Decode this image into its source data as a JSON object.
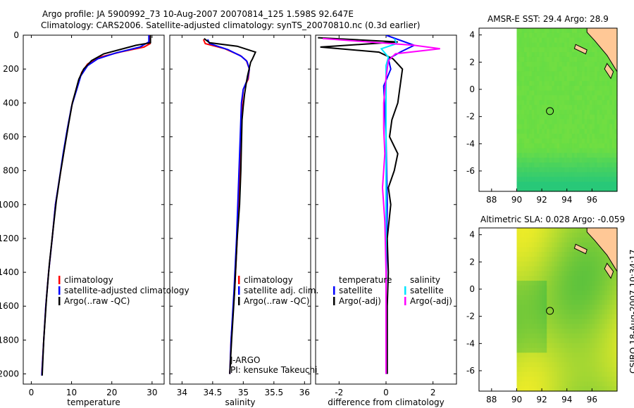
{
  "header": {
    "line1": "Argo profile: JA 5900992_73 10-Aug-2007 20070814_125 1.598S 92.647E",
    "line2": "Climatology: CARS2006. Satellite-adjusted climatology: synTS_20070810.nc (0.3d earlier)"
  },
  "side_stamp": "CSIRO 18-Aug-2007 10:34:17",
  "colors": {
    "clim": "#ff0000",
    "sat": "#0000ff",
    "argo": "#000000",
    "sal_sat": "#00e5ff",
    "sal_argo": "#ff00ff"
  },
  "chart_data": [
    {
      "id": "temperature",
      "type": "line",
      "xlabel": "temperature",
      "xlim": [
        -2,
        33
      ],
      "ylim": [
        0,
        2060
      ],
      "xticks": [
        0,
        10,
        20,
        30
      ],
      "yticks": [
        0,
        200,
        400,
        600,
        800,
        1000,
        1200,
        1400,
        1600,
        1800,
        2000
      ],
      "legend": [
        "climatology",
        "satellite-adjusted climatology",
        "Argo(..raw -QC)"
      ],
      "series": [
        {
          "name": "climatology",
          "color": "clim",
          "points": [
            [
              29.5,
              0
            ],
            [
              29.5,
              50
            ],
            [
              28,
              70
            ],
            [
              22,
              100
            ],
            [
              17,
              130
            ],
            [
              14,
              170
            ],
            [
              12.5,
              220
            ],
            [
              11.5,
              300
            ],
            [
              10.2,
              400
            ],
            [
              9,
              550
            ],
            [
              8,
              700
            ],
            [
              7,
              850
            ],
            [
              6,
              1000
            ],
            [
              5.2,
              1200
            ],
            [
              4.3,
              1400
            ],
            [
              3.6,
              1600
            ],
            [
              3.1,
              1800
            ],
            [
              2.6,
              2000
            ]
          ]
        },
        {
          "name": "satellite-adjusted climatology",
          "color": "sat",
          "points": [
            [
              29.2,
              0
            ],
            [
              29.2,
              40
            ],
            [
              27,
              70
            ],
            [
              21,
              105
            ],
            [
              16.5,
              140
            ],
            [
              14,
              180
            ],
            [
              12.3,
              240
            ],
            [
              11.3,
              320
            ],
            [
              10,
              420
            ],
            [
              8.9,
              560
            ],
            [
              7.9,
              700
            ],
            [
              6.9,
              860
            ],
            [
              6,
              1000
            ],
            [
              5.2,
              1200
            ],
            [
              4.3,
              1400
            ],
            [
              3.6,
              1600
            ],
            [
              3.1,
              1800
            ],
            [
              2.6,
              2010
            ]
          ]
        },
        {
          "name": "Argo(..raw -QC)",
          "color": "argo",
          "points": [
            [
              29.6,
              0
            ],
            [
              29.6,
              45
            ],
            [
              26,
              60
            ],
            [
              22,
              85
            ],
            [
              18,
              110
            ],
            [
              15,
              150
            ],
            [
              13,
              200
            ],
            [
              11.8,
              260
            ],
            [
              11,
              330
            ],
            [
              10.2,
              400
            ],
            [
              9.3,
              520
            ],
            [
              8.3,
              660
            ],
            [
              7.2,
              820
            ],
            [
              6.2,
              980
            ],
            [
              5.4,
              1150
            ],
            [
              4.5,
              1350
            ],
            [
              3.8,
              1550
            ],
            [
              3.1,
              1800
            ],
            [
              2.7,
              2010
            ]
          ]
        }
      ]
    },
    {
      "id": "salinity",
      "type": "line",
      "xlabel": "salinity",
      "xlim": [
        33.8,
        36.1
      ],
      "ylim": [
        0,
        2060
      ],
      "xticks": [
        34,
        34.5,
        35,
        35.5,
        36
      ],
      "yticks": [
        0,
        200,
        400,
        600,
        800,
        1000,
        1200,
        1400,
        1600,
        1800,
        2000
      ],
      "legend": [
        "climatology",
        "satellite adj. clim.",
        "Argo(..raw -QC)"
      ],
      "annotation": [
        "J-ARGO",
        "PI: kensuke Takeuchi"
      ],
      "series": [
        {
          "name": "climatology",
          "color": "clim",
          "points": [
            [
              34.35,
              25
            ],
            [
              34.38,
              50
            ],
            [
              34.7,
              80
            ],
            [
              34.95,
              120
            ],
            [
              35.05,
              150
            ],
            [
              35.1,
              200
            ],
            [
              35.08,
              260
            ],
            [
              35.0,
              320
            ],
            [
              34.98,
              400
            ],
            [
              34.96,
              600
            ],
            [
              34.93,
              900
            ],
            [
              34.9,
              1200
            ],
            [
              34.86,
              1500
            ],
            [
              34.8,
              1800
            ],
            [
              34.78,
              2000
            ]
          ]
        },
        {
          "name": "satellite adj. clim.",
          "color": "sat",
          "points": [
            [
              34.42,
              25
            ],
            [
              34.45,
              50
            ],
            [
              34.75,
              85
            ],
            [
              34.97,
              125
            ],
            [
              35.06,
              155
            ],
            [
              35.1,
              200
            ],
            [
              35.07,
              260
            ],
            [
              35.0,
              320
            ],
            [
              34.97,
              400
            ],
            [
              34.95,
              600
            ],
            [
              34.92,
              900
            ],
            [
              34.89,
              1200
            ],
            [
              34.85,
              1500
            ],
            [
              34.8,
              1800
            ],
            [
              34.78,
              2000
            ]
          ]
        },
        {
          "name": "Argo(..raw -QC)",
          "color": "argo",
          "points": [
            [
              34.36,
              20
            ],
            [
              34.45,
              45
            ],
            [
              34.9,
              65
            ],
            [
              35.2,
              100
            ],
            [
              35.15,
              140
            ],
            [
              35.12,
              160
            ],
            [
              35.07,
              240
            ],
            [
              35.05,
              280
            ],
            [
              35.02,
              350
            ],
            [
              35.0,
              420
            ],
            [
              34.98,
              500
            ],
            [
              34.97,
              650
            ],
            [
              34.96,
              800
            ],
            [
              34.94,
              1000
            ],
            [
              34.9,
              1200
            ],
            [
              34.86,
              1500
            ],
            [
              34.81,
              1800
            ],
            [
              34.78,
              2000
            ]
          ]
        }
      ]
    },
    {
      "id": "difference",
      "type": "line",
      "xlabel": "difference from climatology",
      "xlim": [
        -3,
        3
      ],
      "ylim": [
        0,
        2060
      ],
      "xticks": [
        -2,
        0,
        2
      ],
      "yticks": [
        0,
        200,
        400,
        600,
        800,
        1000,
        1200,
        1400,
        1600,
        1800,
        2000
      ],
      "legend_left_title": "temperature",
      "legend_left": [
        "satellite",
        "Argo(-adj)"
      ],
      "legend_right_title": "salinity",
      "legend_right": [
        "satellite",
        "Argo(-adj)"
      ],
      "series": [
        {
          "name": "temperature satellite",
          "color": "sat",
          "points": [
            [
              0,
              0
            ],
            [
              1.2,
              60
            ],
            [
              0.6,
              100
            ],
            [
              0.1,
              140
            ],
            [
              0.2,
              200
            ],
            [
              -0.1,
              300
            ],
            [
              0,
              600
            ],
            [
              0.05,
              1000
            ],
            [
              0,
              1500
            ],
            [
              0,
              2000
            ]
          ]
        },
        {
          "name": "temperature Argo(-adj)",
          "color": "argo",
          "points": [
            [
              -2.9,
              15
            ],
            [
              0.5,
              40
            ],
            [
              -2.8,
              70
            ],
            [
              -0.3,
              100
            ],
            [
              0.3,
              140
            ],
            [
              0.7,
              200
            ],
            [
              0.6,
              300
            ],
            [
              0.5,
              400
            ],
            [
              0.25,
              500
            ],
            [
              0.15,
              600
            ],
            [
              0.5,
              700
            ],
            [
              0.35,
              800
            ],
            [
              0.1,
              900
            ],
            [
              0.2,
              1000
            ],
            [
              0.05,
              1200
            ],
            [
              0.1,
              1400
            ],
            [
              0.05,
              1600
            ],
            [
              0.05,
              2000
            ]
          ]
        },
        {
          "name": "salinity satellite",
          "color": "sal_sat",
          "points": [
            [
              0.35,
              20
            ],
            [
              0.45,
              50
            ],
            [
              -0.2,
              80
            ],
            [
              0.1,
              130
            ],
            [
              0,
              180
            ],
            [
              0,
              500
            ],
            [
              0,
              1000
            ],
            [
              0,
              1500
            ],
            [
              0,
              2000
            ]
          ]
        },
        {
          "name": "salinity Argo(-adj)",
          "color": "sal_argo",
          "points": [
            [
              -2.7,
              20
            ],
            [
              1.2,
              60
            ],
            [
              2.3,
              80
            ],
            [
              0.4,
              110
            ],
            [
              0.1,
              150
            ],
            [
              0,
              250
            ],
            [
              -0.1,
              400
            ],
            [
              -0.1,
              550
            ],
            [
              -0.05,
              700
            ],
            [
              -0.15,
              900
            ],
            [
              -0.05,
              1100
            ],
            [
              0,
              1400
            ],
            [
              0,
              1700
            ],
            [
              0,
              2000
            ]
          ]
        }
      ]
    },
    {
      "id": "sst_map",
      "type": "heatmap",
      "title": "AMSR-E SST: 29.4  Argo: 28.9",
      "xlim": [
        87,
        98
      ],
      "ylim": [
        -7.5,
        4.5
      ],
      "xticks": [
        88,
        90,
        92,
        94,
        96
      ],
      "yticks": [
        -6,
        -4,
        -2,
        0,
        2,
        4
      ],
      "argo_position": {
        "lon": 92.647,
        "lat": -1.598
      }
    },
    {
      "id": "sla_map",
      "type": "heatmap",
      "title": "Altimetric SLA: 0.028  Argo: -0.059",
      "xlim": [
        87,
        98
      ],
      "ylim": [
        -7.5,
        4.5
      ],
      "xticks": [
        88,
        90,
        92,
        94,
        96
      ],
      "yticks": [
        -6,
        -4,
        -2,
        0,
        2,
        4
      ],
      "argo_position": {
        "lon": 92.647,
        "lat": -1.598
      }
    }
  ]
}
